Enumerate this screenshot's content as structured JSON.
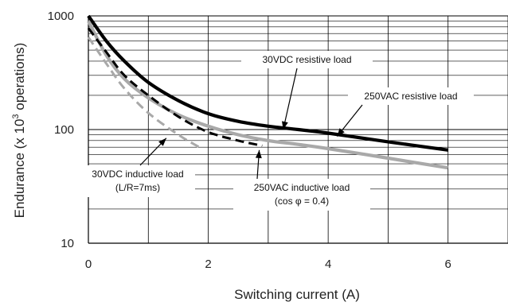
{
  "chart_data": {
    "type": "line",
    "xlabel": "Switching current (A)",
    "ylabel_main": "Endurance (x 10",
    "ylabel_sup": "3",
    "ylabel_tail": " operations)",
    "x_ticks": [
      "0",
      "2",
      "4",
      "6"
    ],
    "x_tick_values": [
      0,
      2,
      4,
      6
    ],
    "y_ticks": [
      "10",
      "100",
      "1000"
    ],
    "y_tick_values": [
      10,
      100,
      1000
    ],
    "xlim": [
      0,
      7
    ],
    "ylim": [
      10,
      1000
    ],
    "y_scale": "log",
    "grid": true,
    "series": [
      {
        "key": "s30r",
        "color": "#000000",
        "dash": "solid",
        "width": "thick",
        "points": [
          [
            0,
            1000
          ],
          [
            0.3,
            600
          ],
          [
            0.6,
            400
          ],
          [
            1,
            260
          ],
          [
            1.5,
            180
          ],
          [
            2,
            138
          ],
          [
            2.5,
            118
          ],
          [
            3,
            107
          ],
          [
            3.5,
            100
          ],
          [
            4,
            93
          ],
          [
            5,
            78
          ],
          [
            6,
            66
          ]
        ]
      },
      {
        "key": "s250r",
        "color": "#a9a9a9",
        "dash": "solid",
        "width": "thick",
        "points": [
          [
            0,
            900
          ],
          [
            0.3,
            450
          ],
          [
            0.6,
            280
          ],
          [
            1,
            190
          ],
          [
            1.5,
            135
          ],
          [
            2,
            107
          ],
          [
            2.5,
            90
          ],
          [
            3,
            80
          ],
          [
            3.5,
            74
          ],
          [
            4,
            68
          ],
          [
            5,
            56
          ],
          [
            6,
            46
          ]
        ]
      },
      {
        "key": "s30i",
        "color": "#000000",
        "dash": "dashed",
        "width": "medium",
        "points": [
          [
            0,
            780
          ],
          [
            0.3,
            480
          ],
          [
            0.6,
            300
          ],
          [
            1,
            200
          ],
          [
            1.5,
            130
          ],
          [
            2,
            95
          ],
          [
            2.5,
            80
          ],
          [
            2.9,
            72
          ]
        ]
      },
      {
        "key": "s250i",
        "color": "#a9a9a9",
        "dash": "dashed",
        "width": "medium",
        "points": [
          [
            0,
            650
          ],
          [
            0.3,
            380
          ],
          [
            0.6,
            230
          ],
          [
            1,
            140
          ],
          [
            1.5,
            90
          ],
          [
            1.85,
            70
          ]
        ]
      }
    ],
    "annotations": [
      {
        "key": "a30r",
        "lines": [
          "30VDC resistive load"
        ],
        "target": [
          3.25,
          100
        ]
      },
      {
        "key": "a250r",
        "lines": [
          "250VAC resistive load"
        ],
        "target": [
          4.15,
          87
        ]
      },
      {
        "key": "a30i",
        "lines": [
          "30VDC inductive load",
          "(L/R=7ms)"
        ],
        "target": [
          1.3,
          84
        ]
      },
      {
        "key": "a250i",
        "lines": [
          "250VAC inductive load",
          "(cos φ = 0.4)"
        ],
        "target": [
          2.85,
          66
        ]
      }
    ]
  }
}
